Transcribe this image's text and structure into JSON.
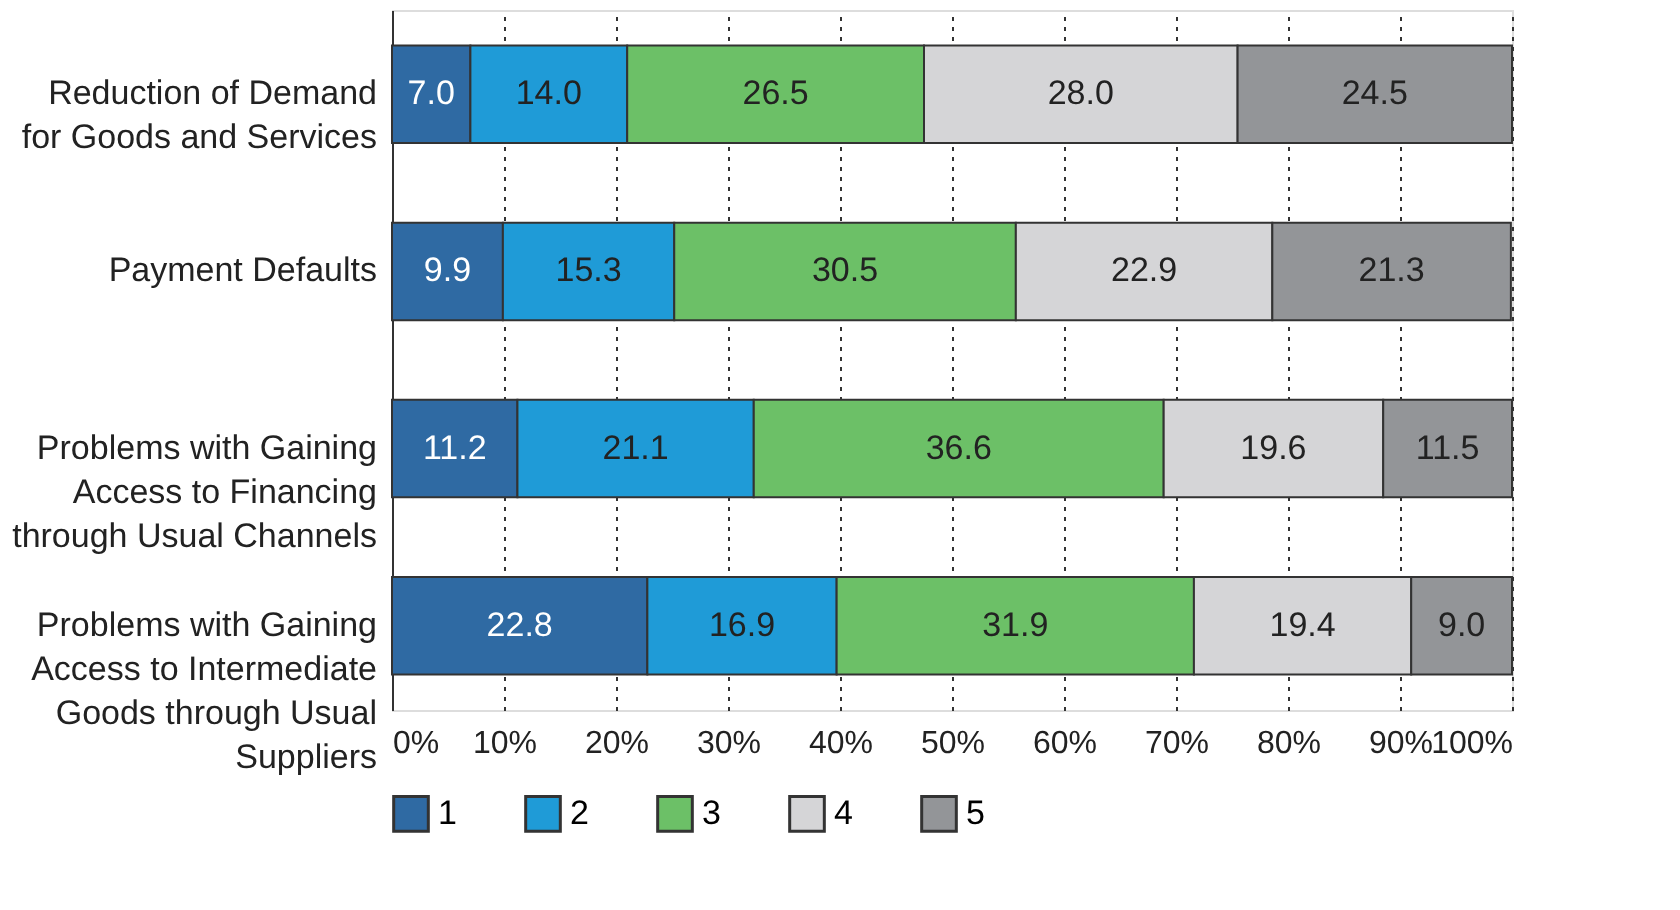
{
  "chart_data": {
    "type": "bar",
    "orientation": "horizontal",
    "stacked": true,
    "data_labels": true,
    "categories": [
      "Reduction of Demand\nfor Goods and Services",
      "Payment Defaults",
      "Problems with Gaining\nAccess to Financing\nthrough Usual Channels",
      "Problems with Gaining\nAccess to Intermediate\nGoods through Usual\nSuppliers"
    ],
    "series": [
      {
        "name": "1",
        "color": "#2f6aa3",
        "values": [
          7.0,
          9.9,
          11.2,
          22.8
        ],
        "value_labels": [
          "7.0",
          "9.9",
          "11.2",
          "22.8"
        ]
      },
      {
        "name": "2",
        "color": "#1f9bd7",
        "values": [
          14.0,
          15.3,
          21.1,
          16.9
        ],
        "value_labels": [
          "14.0",
          "15.3",
          "21.1",
          "16.9"
        ]
      },
      {
        "name": "3",
        "color": "#6cc067",
        "values": [
          26.5,
          30.5,
          36.6,
          31.9
        ],
        "value_labels": [
          "26.5",
          "30.5",
          "36.6",
          "31.9"
        ]
      },
      {
        "name": "4",
        "color": "#d5d5d7",
        "values": [
          28.0,
          22.9,
          19.6,
          19.4
        ],
        "value_labels": [
          "28.0",
          "22.9",
          "19.6",
          "19.4"
        ]
      },
      {
        "name": "5",
        "color": "#939598",
        "values": [
          24.5,
          21.3,
          11.5,
          9.0
        ],
        "value_labels": [
          "24.5",
          "21.3",
          "11.5",
          "9.0"
        ]
      }
    ],
    "xlim": [
      0,
      100
    ],
    "xticks": [
      {
        "value": 0,
        "label": "0%"
      },
      {
        "value": 10,
        "label": "10%"
      },
      {
        "value": 20,
        "label": "20%"
      },
      {
        "value": 30,
        "label": "30%"
      },
      {
        "value": 40,
        "label": "40%"
      },
      {
        "value": 50,
        "label": "50%"
      },
      {
        "value": 60,
        "label": "60%"
      },
      {
        "value": 70,
        "label": "70%"
      },
      {
        "value": 80,
        "label": "80%"
      },
      {
        "value": 90,
        "label": "90%"
      },
      {
        "value": 100,
        "label": "100%"
      }
    ],
    "grid": "x",
    "legend": "bottom"
  }
}
